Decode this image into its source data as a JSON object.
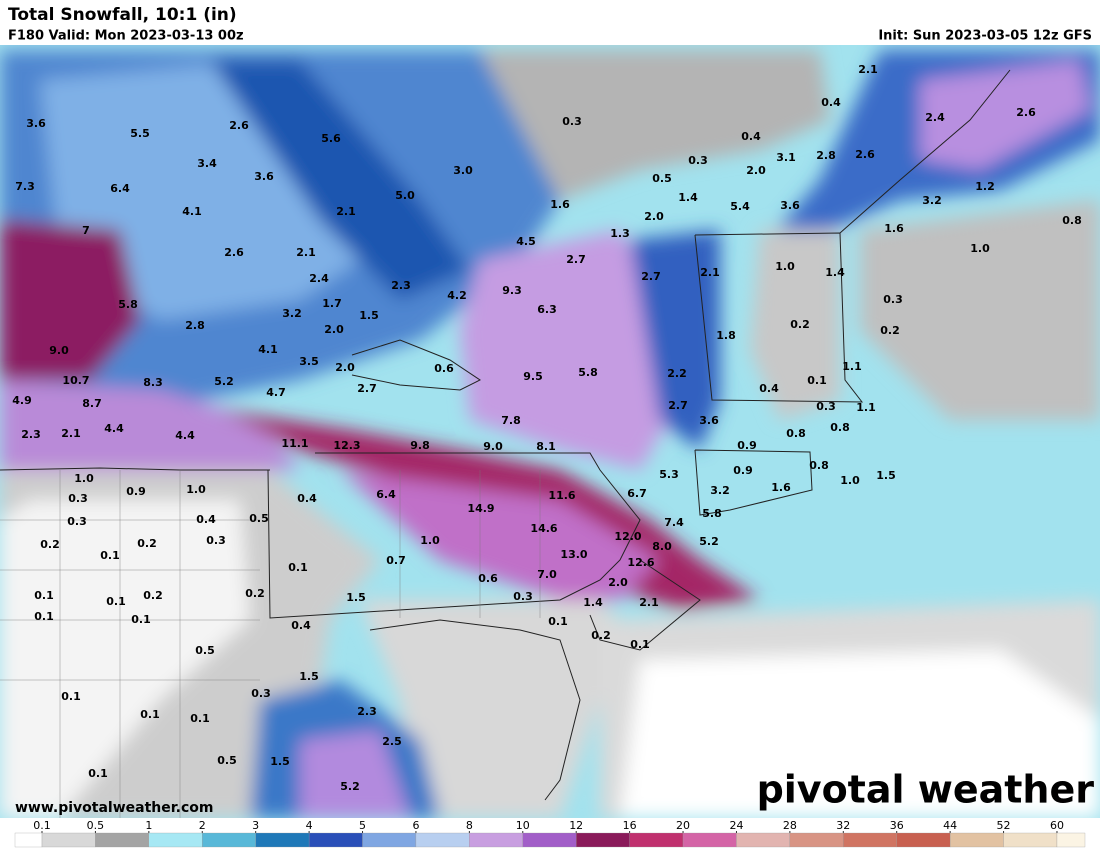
{
  "header": {
    "title": "Total Snowfall, 10:1 (in)",
    "valid": "F180 Valid: Mon 2023-03-13 00z",
    "init": "Init: Sun 2023-03-05 12z GFS"
  },
  "map_labels": [
    "3.6",
    "5.5",
    "2.6",
    "5.6",
    "0.3",
    "2.1",
    "0.4",
    "2.4",
    "2.6",
    "0.4",
    "3.4",
    "3.6",
    "3.0",
    "0.3",
    "3.1",
    "2.8",
    "2.6",
    "7.3",
    "6.4",
    "5.0",
    "0.5",
    "1.4",
    "2.0",
    "1.2",
    "4.1",
    "2.1",
    "1.6",
    "2.0",
    "5.4",
    "3.6",
    "3.2",
    "0.8",
    "7",
    "1.3",
    "4.5",
    "1.6",
    "2.6",
    "2.1",
    "2.7",
    "2.7",
    "2.1",
    "1.0",
    "1.4",
    "1.0",
    "2.4",
    "2.3",
    "4.2",
    "9.3",
    "0.3",
    "5.8",
    "1.7",
    "1.5",
    "6.3",
    "2.8",
    "3.2",
    "2.0",
    "0.2",
    "0.2",
    "1.8",
    "9.0",
    "4.1",
    "3.5",
    "2.0",
    "0.6",
    "9.5",
    "5.8",
    "2.2",
    "1.1",
    "10.7",
    "8.3",
    "5.2",
    "2.7",
    "0.1",
    "0.4",
    "4.9",
    "8.7",
    "4.7",
    "2.7",
    "0.3",
    "1.1",
    "7.8",
    "3.6",
    "0.8",
    "2.3",
    "2.1",
    "4.4",
    "4.4",
    "0.8",
    "11.1",
    "12.3",
    "9.8",
    "9.0",
    "8.1",
    "0.9",
    "5.3",
    "0.9",
    "0.8",
    "1.0",
    "0.9",
    "1.0",
    "0.4",
    "6.4",
    "11.6",
    "6.7",
    "3.2",
    "1.6",
    "1.0",
    "1.5",
    "0.3",
    "14.9",
    "5.8",
    "7.4",
    "0.3",
    "0.4",
    "0.5",
    "14.6",
    "12.0",
    "0.3",
    "0.2",
    "0.2",
    "1.0",
    "5.2",
    "8.0",
    "0.1",
    "13.0",
    "0.7",
    "12.6",
    "0.1",
    "7.0",
    "0.6",
    "2.0",
    "0.1",
    "0.1",
    "0.2",
    "0.2",
    "1.5",
    "0.3",
    "1.4",
    "2.1",
    "0.1",
    "0.1",
    "0.4",
    "0.1",
    "0.2",
    "0.1",
    "0.5",
    "1.5",
    "0.1",
    "0.3",
    "0.1",
    "0.1",
    "2.3",
    "2.5",
    "0.5",
    "1.5",
    "0.1",
    "5.2"
  ],
  "footer": {
    "url": "www.pivotalweather.com",
    "logo": "pivotal weather"
  },
  "colorbar": {
    "ticks": [
      0.1,
      0.5,
      1,
      2,
      3,
      4,
      5,
      6,
      8,
      10,
      12,
      16,
      20,
      24,
      28,
      32,
      36,
      44,
      52,
      60
    ],
    "colors": [
      "#ffffff",
      "#d8d8d8",
      "#a4a4a4",
      "#a6e8f4",
      "#58b8d8",
      "#1f78b8",
      "#2a4fb8",
      "#7fa6e2",
      "#b8cff0",
      "#c89ee0",
      "#a25ec8",
      "#8a1a5a",
      "#c0306e",
      "#d464a6",
      "#e2b4b0",
      "#d89484",
      "#d07462",
      "#c86050",
      "#e2c2a2",
      "#f0e0c8",
      "#fbf4e4"
    ]
  }
}
